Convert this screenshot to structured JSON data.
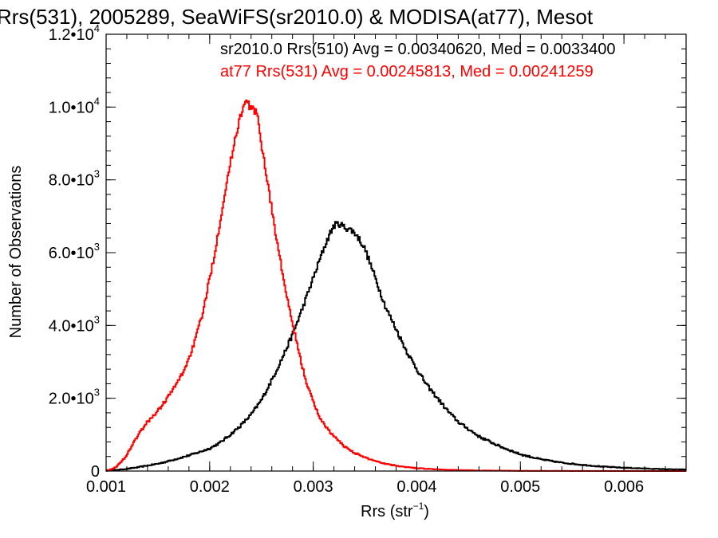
{
  "chart_data": {
    "type": "line",
    "title": "Rrs(531), 2005289, SeaWiFS(sr2010.0) & MODISA(at77), Mesot",
    "xlabel": "Rrs (str",
    "xlabel_sup": "−1",
    "xlabel_tail": ")",
    "ylabel": "Number of Observations",
    "xlim": [
      0.001,
      0.0066
    ],
    "ylim": [
      0,
      12000
    ],
    "x_ticks": [
      0.001,
      0.002,
      0.003,
      0.004,
      0.005,
      0.006
    ],
    "x_tick_labels": [
      "0.001",
      "0.002",
      "0.003",
      "0.004",
      "0.005",
      "0.006"
    ],
    "y_ticks": [
      {
        "value": 0,
        "mant": "0",
        "exp": ""
      },
      {
        "value": 2000,
        "mant": "2.0•10",
        "exp": "3"
      },
      {
        "value": 4000,
        "mant": "4.0•10",
        "exp": "3"
      },
      {
        "value": 6000,
        "mant": "6.0•10",
        "exp": "3"
      },
      {
        "value": 8000,
        "mant": "8.0•10",
        "exp": "3"
      },
      {
        "value": 10000,
        "mant": "1.0•10",
        "exp": "4"
      },
      {
        "value": 12000,
        "mant": "1.2•10",
        "exp": "4"
      }
    ],
    "grid": false,
    "series": [
      {
        "name": "sr2010.0 Rrs(510) Avg = 0.00340620, Med = 0.0033400",
        "color": "#000000",
        "x": [
          0.001,
          0.0011,
          0.0012,
          0.0013,
          0.0014,
          0.0015,
          0.0016,
          0.0017,
          0.0018,
          0.0019,
          0.002,
          0.0021,
          0.0022,
          0.0023,
          0.0024,
          0.0025,
          0.0026,
          0.0027,
          0.0028,
          0.0029,
          0.003,
          0.00305,
          0.0031,
          0.00315,
          0.0032,
          0.00325,
          0.0033,
          0.00335,
          0.0034,
          0.00345,
          0.0035,
          0.00355,
          0.0036,
          0.00365,
          0.0037,
          0.0038,
          0.0039,
          0.004,
          0.0041,
          0.0042,
          0.0043,
          0.0044,
          0.0045,
          0.0046,
          0.0048,
          0.005,
          0.0052,
          0.0054,
          0.0056,
          0.0058,
          0.006,
          0.0062,
          0.0064,
          0.0066
        ],
        "y": [
          20,
          30,
          60,
          100,
          150,
          200,
          270,
          350,
          430,
          520,
          620,
          780,
          1000,
          1250,
          1550,
          1950,
          2500,
          3100,
          3750,
          4500,
          5300,
          5700,
          6100,
          6450,
          6750,
          6800,
          6700,
          6650,
          6550,
          6350,
          6100,
          5700,
          5300,
          4900,
          4500,
          3900,
          3300,
          2800,
          2350,
          2000,
          1650,
          1350,
          1150,
          950,
          680,
          460,
          320,
          230,
          170,
          120,
          90,
          70,
          50,
          40
        ]
      },
      {
        "name": "at77 Rrs(531) Avg = 0.00245813, Med = 0.00241259",
        "color": "#ff0000",
        "x": [
          0.001,
          0.00105,
          0.0011,
          0.00115,
          0.0012,
          0.00125,
          0.0013,
          0.00135,
          0.0014,
          0.00145,
          0.0015,
          0.00155,
          0.0016,
          0.00165,
          0.0017,
          0.00175,
          0.0018,
          0.00185,
          0.0019,
          0.00195,
          0.002,
          0.00205,
          0.0021,
          0.00215,
          0.0022,
          0.00225,
          0.0023,
          0.00235,
          0.00238,
          0.00241,
          0.00244,
          0.00247,
          0.0025,
          0.00255,
          0.0026,
          0.00265,
          0.0027,
          0.00275,
          0.0028,
          0.00285,
          0.0029,
          0.00295,
          0.003,
          0.00305,
          0.0031,
          0.0032,
          0.0033,
          0.0034,
          0.0035,
          0.0036,
          0.0037,
          0.0038,
          0.0039,
          0.004,
          0.0042,
          0.0044,
          0.0046,
          0.0048,
          0.005,
          0.0052,
          0.0054,
          0.0056,
          0.0058,
          0.006,
          0.0062,
          0.0064,
          0.0066
        ],
        "y": [
          0,
          50,
          120,
          260,
          450,
          700,
          950,
          1150,
          1350,
          1500,
          1650,
          1850,
          2050,
          2250,
          2500,
          2750,
          3100,
          3500,
          4000,
          4550,
          5300,
          6000,
          6850,
          7700,
          8450,
          9200,
          9800,
          10150,
          10050,
          9950,
          9900,
          9600,
          9000,
          8100,
          7200,
          6300,
          5500,
          4700,
          4050,
          3400,
          2800,
          2300,
          1900,
          1550,
          1300,
          950,
          680,
          500,
          370,
          280,
          200,
          150,
          110,
          80,
          45,
          25,
          15,
          10,
          6,
          4,
          3,
          2,
          2,
          1,
          1,
          0,
          0
        ]
      }
    ],
    "legend": "top-right",
    "annotations": [
      {
        "text": "sr2010.0 Rrs(510) Avg = 0.00340620, Med = 0.0033400",
        "color": "#000000"
      },
      {
        "text": "at77 Rrs(531) Avg = 0.00245813, Med = 0.00241259",
        "color": "#ff0000"
      }
    ]
  }
}
